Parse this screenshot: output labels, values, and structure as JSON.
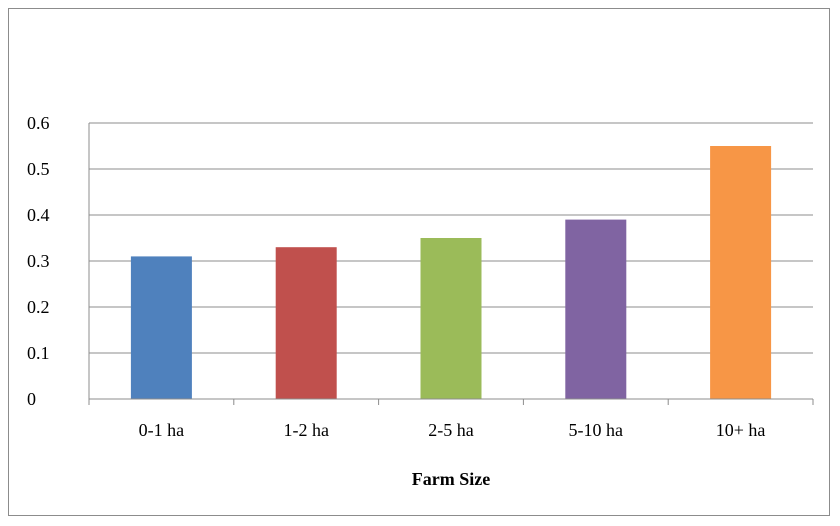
{
  "chart_data": {
    "type": "bar",
    "categories": [
      "0-1 ha",
      "1-2 ha",
      "2-5 ha",
      "5-10 ha",
      "10+ ha"
    ],
    "values": [
      0.31,
      0.33,
      0.35,
      0.39,
      0.55
    ],
    "colors": [
      "#4f81bd",
      "#c0504d",
      "#9bbb59",
      "#8064a2",
      "#f79646"
    ],
    "title": "",
    "xlabel": "Farm Size",
    "ylabel": "",
    "ylim": [
      0,
      0.6
    ],
    "yticks": [
      "0",
      "0.1",
      "0.2",
      "0.3",
      "0.4",
      "0.5",
      "0.6"
    ],
    "grid": true,
    "legend": "none"
  }
}
